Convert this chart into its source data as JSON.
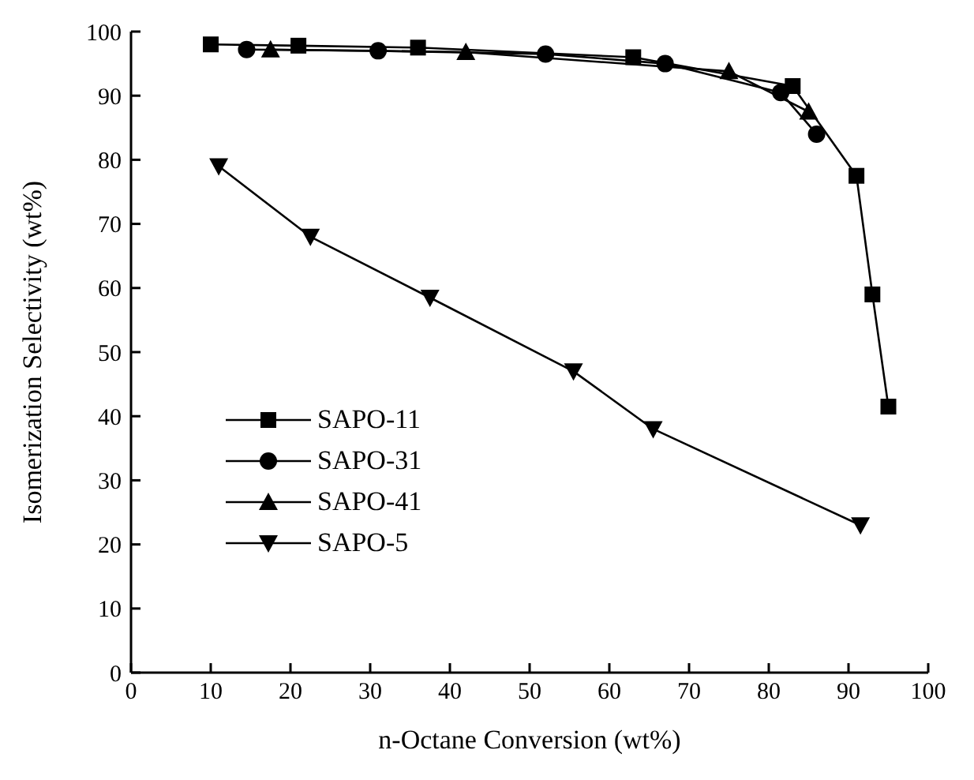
{
  "chart_data": {
    "type": "line",
    "xlabel": "n-Octane Conversion (wt%)",
    "ylabel": "Isomerization Selectivity (wt%)",
    "xlim": [
      0,
      100
    ],
    "xticks": [
      0,
      10,
      20,
      30,
      40,
      50,
      60,
      70,
      80,
      90,
      100
    ],
    "ylim": [
      0,
      100
    ],
    "yticks": [
      0,
      10,
      20,
      30,
      40,
      50,
      60,
      70,
      80,
      90,
      100
    ],
    "grid": false,
    "legend": "left",
    "line_style": "solid",
    "series": [
      {
        "name": "SAPO-11",
        "color": "#000000",
        "marker": "square",
        "x": [
          10,
          21,
          36,
          63,
          83,
          91,
          93,
          95
        ],
        "values": [
          98,
          97.8,
          97.5,
          96,
          91.5,
          77.5,
          59,
          41.5
        ]
      },
      {
        "name": "SAPO-31",
        "color": "#000000",
        "marker": "circle",
        "x": [
          14.5,
          31,
          52,
          67,
          81.5,
          86
        ],
        "values": [
          97.2,
          97,
          96.5,
          95,
          90.5,
          84
        ]
      },
      {
        "name": "SAPO-41",
        "color": "#000000",
        "marker": "triangle",
        "x": [
          17.5,
          42,
          75,
          85
        ],
        "values": [
          97.2,
          96.8,
          93.8,
          87.5
        ]
      },
      {
        "name": "SAPO-5",
        "color": "#000000",
        "marker": "triangle-down",
        "x": [
          11,
          22.5,
          37.5,
          55.5,
          65.5,
          91.5
        ],
        "values": [
          79,
          68,
          58.5,
          47,
          38,
          23
        ]
      }
    ]
  }
}
